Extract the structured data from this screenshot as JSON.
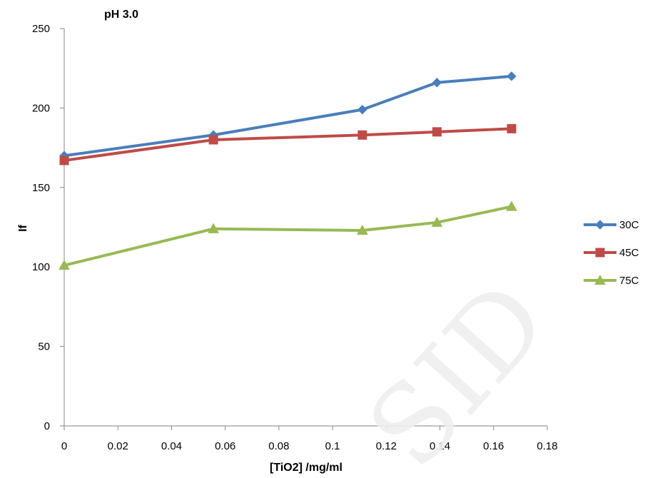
{
  "chart_data": {
    "type": "line",
    "title": "pH 3.0",
    "xlabel": "[TiO2] /mg/ml",
    "ylabel": "If",
    "xlim": [
      0,
      0.18
    ],
    "ylim": [
      0,
      250
    ],
    "x_ticks": [
      "0",
      "0.02",
      "0.04",
      "0.06",
      "0.08",
      "0.1",
      "0.12",
      "0.14",
      "0.16",
      "0.18"
    ],
    "y_ticks": [
      "0",
      "50",
      "100",
      "150",
      "200",
      "250"
    ],
    "x": [
      0,
      0.0556,
      0.1111,
      0.1389,
      0.1667
    ],
    "series": [
      {
        "name": "30C",
        "values": [
          170,
          183,
          199,
          216,
          220
        ],
        "color": "#4a7ebb",
        "marker": "diamond"
      },
      {
        "name": "45C",
        "values": [
          167,
          180,
          183,
          185,
          187
        ],
        "color": "#be4b48",
        "marker": "square"
      },
      {
        "name": "75C",
        "values": [
          101,
          124,
          123,
          128,
          138
        ],
        "color": "#98b954",
        "marker": "triangle"
      }
    ],
    "legend_position": "right",
    "grid": false
  }
}
